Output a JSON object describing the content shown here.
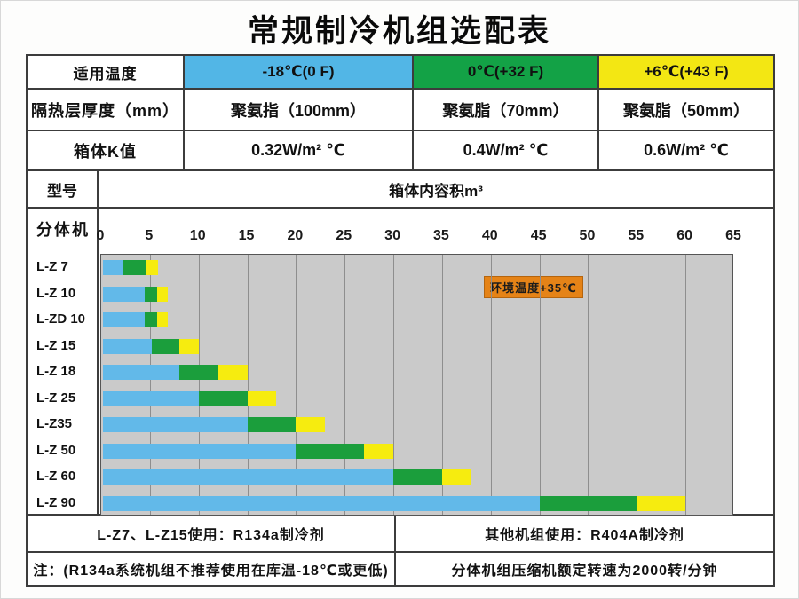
{
  "title": "常规制冷机组选配表",
  "spec_table": {
    "row_temp": {
      "label": "适用温度",
      "cells": [
        {
          "text": "-18℃(0 F)",
          "bg": "#52b6e6"
        },
        {
          "text": "0℃(+32 F)",
          "bg": "#13a246"
        },
        {
          "text": "+6℃(+43 F)",
          "bg": "#f3e713"
        }
      ]
    },
    "row_insulation": {
      "label": "隔热层厚度（mm）",
      "cells": [
        "聚氨指（100mm）",
        "聚氨脂（70mm）",
        "聚氨脂（50mm）"
      ]
    },
    "row_k": {
      "label": "箱体K值",
      "cells": [
        "0.32W/m² ℃",
        "0.4W/m² ℃",
        "0.6W/m² ℃"
      ]
    },
    "row_model": {
      "label": "型号",
      "value": "箱体内容积m³"
    }
  },
  "chart": {
    "left_header": "分体机",
    "annotation_text": "环境温度+35℃"
  },
  "chart_data": {
    "type": "bar",
    "orientation": "horizontal",
    "stacked": true,
    "title": "箱体内容积m³",
    "xlabel": "箱体内容积m³",
    "xlim": [
      0,
      65
    ],
    "x_ticks": [
      0,
      5,
      10,
      15,
      20,
      25,
      30,
      35,
      40,
      45,
      50,
      55,
      60,
      65
    ],
    "grid": true,
    "plot_bg": "#cacaca",
    "categories": [
      "L-Z 7",
      "L-Z 10",
      "L-ZD 10",
      "L-Z 15",
      "L-Z 18",
      "L-Z 25",
      "L-Z35",
      "L-Z 50",
      "L-Z 60",
      "L-Z 90"
    ],
    "series": [
      {
        "name": "-18℃(0 F)",
        "color": "#62b9e9",
        "spans": [
          [
            0,
            2.3
          ],
          [
            0,
            4.5
          ],
          [
            0,
            4.5
          ],
          [
            0,
            5.2
          ],
          [
            0,
            8
          ],
          [
            0,
            10
          ],
          [
            0,
            15
          ],
          [
            0,
            20
          ],
          [
            0,
            30
          ],
          [
            0,
            45
          ]
        ]
      },
      {
        "name": "0℃(+32 F)",
        "color": "#1b9e3c",
        "spans": [
          [
            2.3,
            4.6
          ],
          [
            4.5,
            5.7
          ],
          [
            4.5,
            5.7
          ],
          [
            5.2,
            8
          ],
          [
            8,
            12
          ],
          [
            10,
            15
          ],
          [
            15,
            20
          ],
          [
            20,
            27
          ],
          [
            30,
            35
          ],
          [
            45,
            55
          ]
        ]
      },
      {
        "name": "+6℃(+43 F)",
        "color": "#f6ec0f",
        "spans": [
          [
            4.6,
            5.8
          ],
          [
            5.7,
            6.8
          ],
          [
            5.7,
            6.8
          ],
          [
            8,
            10
          ],
          [
            12,
            15
          ],
          [
            15,
            18
          ],
          [
            20,
            23
          ],
          [
            27,
            30
          ],
          [
            35,
            38
          ],
          [
            55,
            60
          ]
        ]
      }
    ],
    "annotation": {
      "text": "环境温度+35℃",
      "bg": "#e58317"
    }
  },
  "footer": {
    "refrigerant_left": "L-Z7、L-Z15使用：R134a制冷剂",
    "refrigerant_right": "其他机组使用：R404A制冷剂",
    "note_left": "注：(R134a系统机组不推荐使用在库温-18℃或更低)",
    "note_right": "分体机组压缩机额定转速为2000转/分钟"
  },
  "colors": {
    "temp_blue": "#52b6e6",
    "temp_green": "#13a246",
    "temp_yellow": "#f3e713",
    "bar_blue": "#62b9e9",
    "bar_green": "#1b9e3c",
    "bar_yellow": "#f6ec0f",
    "annotation_orange": "#e58317",
    "plot_gray": "#cacaca",
    "border_dark": "#3c3c3c"
  }
}
